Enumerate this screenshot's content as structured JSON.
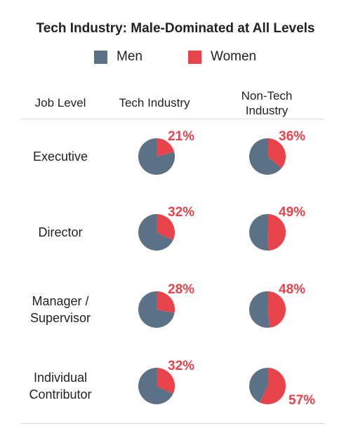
{
  "chart_data": {
    "type": "pie",
    "title": "Tech Industry: Male-Dominated at All Levels",
    "legend": [
      {
        "label": "Men",
        "color": "#5b7186"
      },
      {
        "label": "Women",
        "color": "#e8434b"
      }
    ],
    "legend_placement": "top-center",
    "column_headers": {
      "job_level": "Job Level",
      "tech": "Tech Industry",
      "nontech_line1": "Non-Tech",
      "nontech_line2": "Industry"
    },
    "rows": [
      {
        "label_lines": [
          "Executive"
        ],
        "tech_women": 21,
        "nontech_women": 36,
        "tech_label": "21%",
        "nontech_label": "36%"
      },
      {
        "label_lines": [
          "Director"
        ],
        "tech_women": 32,
        "nontech_women": 49,
        "tech_label": "32%",
        "nontech_label": "49%"
      },
      {
        "label_lines": [
          "Manager /",
          "Supervisor"
        ],
        "tech_women": 28,
        "nontech_women": 48,
        "tech_label": "28%",
        "nontech_label": "48%"
      },
      {
        "label_lines": [
          "Individual",
          "Contributor"
        ],
        "tech_women": 32,
        "nontech_women": 57,
        "tech_label": "32%",
        "nontech_label": "57%"
      }
    ]
  }
}
